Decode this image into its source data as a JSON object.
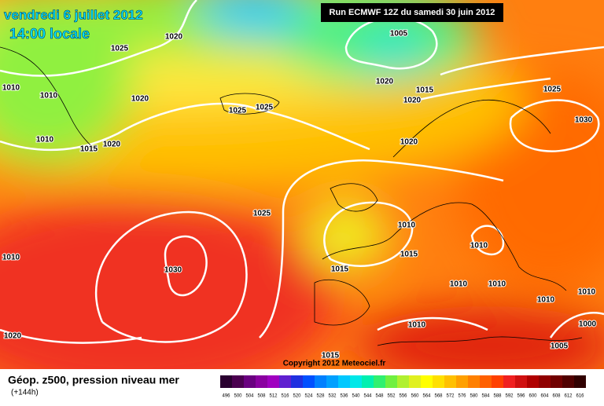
{
  "header": {
    "date": "vendredi 6 juillet 2012",
    "time": "14:00 locale",
    "run": "Run ECMWF 12Z du samedi 30 juin 2012"
  },
  "isobar_labels": [
    "1020",
    "1025",
    "1010",
    "1010",
    "1020",
    "1025",
    "1025",
    "1010",
    "1015",
    "1020",
    "1005",
    "1020",
    "1015",
    "1020",
    "1025",
    "1030",
    "1020",
    "1025",
    "1010",
    "1015",
    "1010",
    "1030",
    "1015",
    "1010",
    "1010",
    "1010",
    "1010",
    "1010",
    "1010",
    "1000",
    "1005",
    "1020",
    "1015"
  ],
  "copyright": "Copyright 2012 Meteociel.fr",
  "legend": {
    "title": "Géop. z500, pression niveau mer",
    "subtitle": "(+144h)",
    "labels": [
      "496",
      "500",
      "504",
      "508",
      "512",
      "516",
      "520",
      "524",
      "528",
      "532",
      "536",
      "540",
      "544",
      "548",
      "552",
      "556",
      "560",
      "564",
      "568",
      "572",
      "576",
      "580",
      "584",
      "588",
      "592",
      "596",
      "600",
      "604",
      "608",
      "612",
      "616"
    ],
    "colors": [
      "#2a0030",
      "#4b0050",
      "#6a0080",
      "#8a00a0",
      "#a000c0",
      "#6020d0",
      "#2030e0",
      "#0050ff",
      "#0080ff",
      "#00a0ff",
      "#00c8ff",
      "#00e8e8",
      "#00f0b0",
      "#30f070",
      "#70f040",
      "#b0f030",
      "#e0f020",
      "#ffff00",
      "#ffe000",
      "#ffc000",
      "#ffa000",
      "#ff8000",
      "#ff6000",
      "#ff4000",
      "#f02020",
      "#d01010",
      "#b00000",
      "#900000",
      "#700000",
      "#500000",
      "#300000"
    ]
  }
}
